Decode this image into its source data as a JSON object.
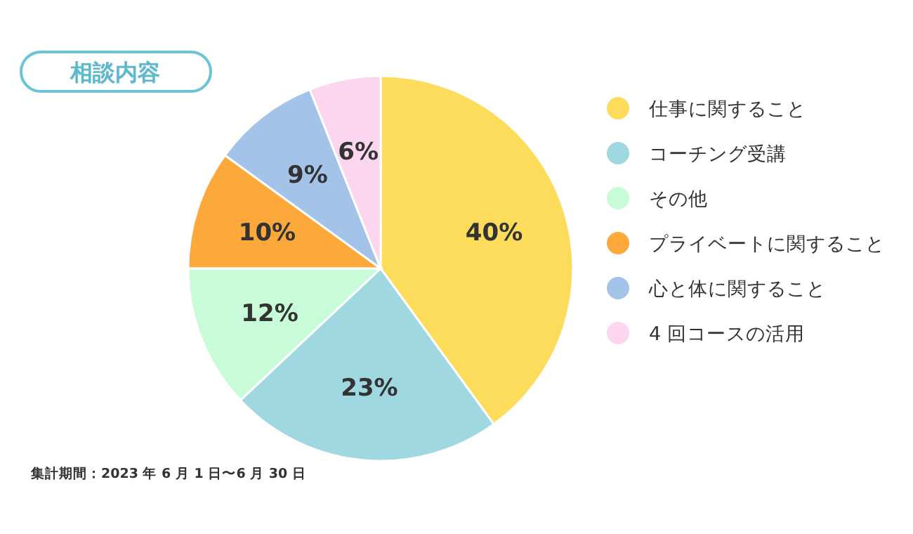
{
  "chart_data": {
    "type": "pie",
    "title": "相談内容",
    "categories": [
      "仕事に関すること",
      "コーチング受講",
      "その他",
      "プライベートに関すること",
      "心と体に関すること",
      "4 回コースの活用"
    ],
    "values": [
      40,
      23,
      12,
      10,
      9,
      6
    ],
    "value_labels": [
      "40%",
      "23%",
      "12%",
      "10%",
      "9%",
      "6%"
    ],
    "colors": [
      "#fddc5c",
      "#9fd8e0",
      "#c8fbd8",
      "#fca83a",
      "#a3c4e8",
      "#fcd6ef"
    ],
    "legend": "right",
    "annotations": [
      "集計期間：2023 年 6 月 1 日〜6 月 30 日"
    ]
  }
}
